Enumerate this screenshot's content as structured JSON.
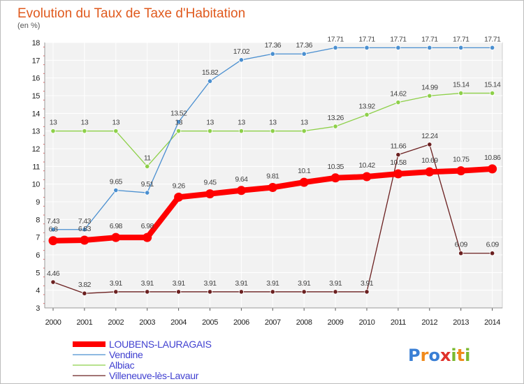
{
  "chart_data": {
    "type": "line",
    "title": "Evolution du Taux de Taxe d'Habitation",
    "unit_label": "(en %)",
    "x": [
      "2000",
      "2001",
      "2002",
      "2003",
      "2004",
      "2005",
      "2006",
      "2007",
      "2008",
      "2009",
      "2010",
      "2011",
      "2012",
      "2013",
      "2014"
    ],
    "ylim": [
      3,
      18
    ],
    "yticks": [
      3,
      4,
      5,
      6,
      7,
      8,
      9,
      10,
      11,
      12,
      13,
      14,
      15,
      16,
      17,
      18
    ],
    "grid": true,
    "legend_position": "bottom-left",
    "series": [
      {
        "name": "LOUBENS-LAURAGAIS",
        "color": "#ff0000",
        "values": [
          6.8,
          6.83,
          6.98,
          6.98,
          9.26,
          9.45,
          9.64,
          9.81,
          10.1,
          10.35,
          10.42,
          10.58,
          10.69,
          10.75,
          10.86
        ],
        "labels": [
          "6.8",
          "6.83",
          "6.98",
          "6.98",
          "9.26",
          "9.45",
          "9.64",
          "9.81",
          "10.1",
          "10.35",
          "10.42",
          "10.58",
          "10.69",
          "10.75",
          "10.86"
        ]
      },
      {
        "name": "Vendine",
        "color": "#4a8fd0",
        "values": [
          7.43,
          7.43,
          9.65,
          9.51,
          13.52,
          15.82,
          17.02,
          17.36,
          17.36,
          17.71,
          17.71,
          17.71,
          17.71,
          17.71,
          17.71
        ],
        "labels": [
          "7.43",
          "7.43",
          "9.65",
          "9.51",
          "13.52",
          "15.82",
          "17.02",
          "17.36",
          "17.36",
          "17.71",
          "17.71",
          "17.71",
          "17.71",
          "17.71",
          "17.71"
        ]
      },
      {
        "name": "Albiac",
        "color": "#8ed04a",
        "values": [
          13,
          13,
          13,
          11,
          13,
          13,
          13,
          13,
          13,
          13.26,
          13.92,
          14.62,
          14.99,
          15.14,
          15.14
        ],
        "labels": [
          "13",
          "13",
          "13",
          "11",
          "13",
          "13",
          "13",
          "13",
          "13",
          "13.26",
          "13.92",
          "14.62",
          "14.99",
          "15.14",
          "15.14"
        ]
      },
      {
        "name": "Villeneuve-lès-Lavaur",
        "color": "#6b2020",
        "values": [
          4.46,
          3.82,
          3.91,
          3.91,
          3.91,
          3.91,
          3.91,
          3.91,
          3.91,
          3.91,
          3.91,
          11.66,
          12.24,
          6.09,
          6.09
        ],
        "labels": [
          "4.46",
          "3.82",
          "3.91",
          "3.91",
          "3.91",
          "3.91",
          "3.91",
          "3.91",
          "3.91",
          "3.91",
          "3.91",
          "11.66",
          "12.24",
          "6.09",
          "6.09"
        ]
      }
    ]
  },
  "logo": {
    "text": "Proxiti",
    "colors": [
      "#3a7fd5",
      "#f08a1c",
      "#3a7fd5",
      "#e0312a",
      "#7ab92f",
      "#f08a1c",
      "#7ab92f"
    ]
  }
}
